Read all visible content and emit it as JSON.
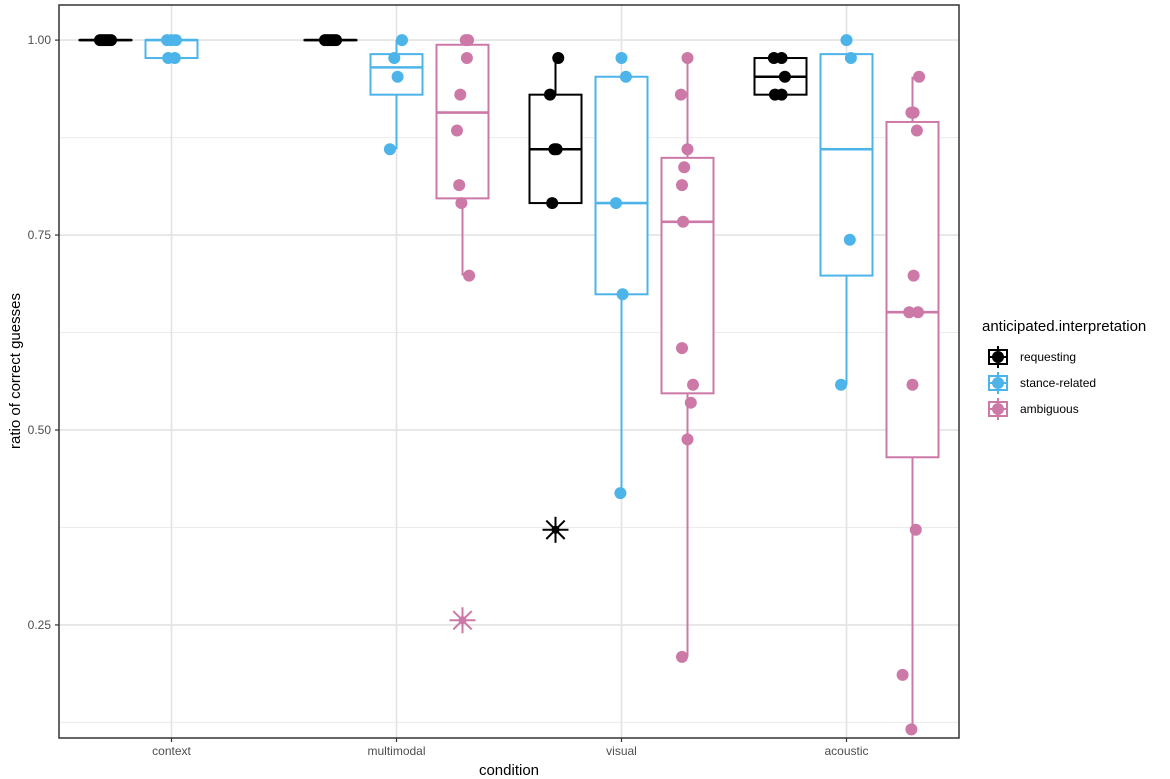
{
  "chart_data": {
    "type": "boxplot",
    "xlabel": "condition",
    "ylabel": "ratio of correct guesses",
    "ylim": [
      0.105,
      1.045
    ],
    "yticks": [
      0.25,
      0.5,
      0.75,
      1.0
    ],
    "ytick_labels": [
      "0.25",
      "0.50",
      "0.75",
      "1.00"
    ],
    "grid": true,
    "categories": [
      "context",
      "multimodal",
      "visual",
      "acoustic"
    ],
    "legend": {
      "title": "anticipated.interpretation",
      "placement": "right",
      "entries": [
        "requesting",
        "stance-related",
        "ambiguous"
      ]
    },
    "series": [
      {
        "name": "requesting",
        "color": "#000000",
        "boxes": [
          {
            "category": "context",
            "q1": 1.0,
            "median": 1.0,
            "q3": 1.0,
            "whisker_low": 1.0,
            "whisker_high": 1.0,
            "outliers": [],
            "points": [
              [
                -0.1,
                1.0
              ],
              [
                -0.05,
                1.0
              ],
              [
                0.0,
                1.0
              ],
              [
                0.05,
                1.0
              ],
              [
                0.1,
                1.0
              ]
            ]
          },
          {
            "category": "multimodal",
            "q1": 1.0,
            "median": 1.0,
            "q3": 1.0,
            "whisker_low": 1.0,
            "whisker_high": 1.0,
            "outliers": [],
            "points": [
              [
                -0.1,
                1.0
              ],
              [
                -0.05,
                1.0
              ],
              [
                0.0,
                1.0
              ],
              [
                0.05,
                1.0
              ],
              [
                0.1,
                1.0
              ]
            ]
          },
          {
            "category": "visual",
            "q1": 0.791,
            "median": 0.86,
            "q3": 0.93,
            "whisker_low": 0.791,
            "whisker_high": 0.977,
            "outliers": [
              0.372
            ],
            "points": [
              [
                -0.1,
                0.93
              ],
              [
                0.05,
                0.977
              ],
              [
                -0.02,
                0.86
              ],
              [
                0.02,
                0.86
              ],
              [
                -0.06,
                0.791
              ]
            ]
          },
          {
            "category": "acoustic",
            "q1": 0.93,
            "median": 0.953,
            "q3": 0.977,
            "whisker_low": 0.93,
            "whisker_high": 0.977,
            "outliers": [],
            "points": [
              [
                -0.12,
                0.977
              ],
              [
                0.02,
                0.977
              ],
              [
                0.08,
                0.953
              ],
              [
                -0.1,
                0.93
              ],
              [
                0.02,
                0.93
              ]
            ]
          }
        ]
      },
      {
        "name": "stance-related",
        "color": "#4DB4E9",
        "boxes": [
          {
            "category": "context",
            "q1": 0.977,
            "median": 1.0,
            "q3": 1.0,
            "whisker_low": 0.977,
            "whisker_high": 1.0,
            "outliers": [],
            "points": [
              [
                -0.08,
                1.0
              ],
              [
                0.08,
                1.0
              ],
              [
                -0.06,
                0.977
              ],
              [
                0.06,
                0.977
              ],
              [
                0.0,
                1.0
              ]
            ]
          },
          {
            "category": "multimodal",
            "q1": 0.93,
            "median": 0.965,
            "q3": 0.982,
            "whisker_low": 0.86,
            "whisker_high": 1.0,
            "outliers": [],
            "points": [
              [
                0.1,
                1.0
              ],
              [
                -0.04,
                0.977
              ],
              [
                0.02,
                0.953
              ],
              [
                -0.12,
                0.86
              ]
            ]
          },
          {
            "category": "visual",
            "q1": 0.674,
            "median": 0.791,
            "q3": 0.953,
            "whisker_low": 0.419,
            "whisker_high": 0.953,
            "outliers": [],
            "points": [
              [
                0.0,
                0.977
              ],
              [
                0.08,
                0.953
              ],
              [
                -0.1,
                0.791
              ],
              [
                0.02,
                0.674
              ],
              [
                -0.02,
                0.419
              ]
            ]
          },
          {
            "category": "acoustic",
            "q1": 0.698,
            "median": 0.86,
            "q3": 0.982,
            "whisker_low": 0.558,
            "whisker_high": 0.982,
            "outliers": [],
            "points": [
              [
                0.0,
                1.0
              ],
              [
                0.08,
                0.977
              ],
              [
                0.06,
                0.744
              ],
              [
                -0.1,
                0.558
              ]
            ]
          }
        ]
      },
      {
        "name": "ambiguous",
        "color": "#CC79A7",
        "boxes": [
          {
            "category": "multimodal",
            "q1": 0.797,
            "median": 0.907,
            "q3": 0.994,
            "whisker_low": 0.698,
            "whisker_high": 1.0,
            "outliers": [
              0.256
            ],
            "points": [
              [
                0.06,
                1.0
              ],
              [
                0.1,
                1.0
              ],
              [
                0.08,
                0.977
              ],
              [
                -0.04,
                0.93
              ],
              [
                -0.1,
                0.884
              ],
              [
                -0.06,
                0.814
              ],
              [
                -0.02,
                0.791
              ],
              [
                0.12,
                0.698
              ]
            ]
          },
          {
            "category": "visual",
            "q1": 0.547,
            "median": 0.767,
            "q3": 0.849,
            "whisker_low": 0.209,
            "whisker_high": 0.977,
            "outliers": [],
            "points": [
              [
                0.0,
                0.977
              ],
              [
                -0.12,
                0.93
              ],
              [
                0.0,
                0.86
              ],
              [
                -0.06,
                0.837
              ],
              [
                -0.1,
                0.814
              ],
              [
                -0.08,
                0.767
              ],
              [
                -0.1,
                0.605
              ],
              [
                0.1,
                0.558
              ],
              [
                0.06,
                0.535
              ],
              [
                0.0,
                0.488
              ],
              [
                -0.1,
                0.209
              ]
            ]
          },
          {
            "category": "acoustic",
            "q1": 0.465,
            "median": 0.651,
            "q3": 0.895,
            "whisker_low": 0.116,
            "whisker_high": 0.953,
            "outliers": [],
            "points": [
              [
                0.12,
                0.953
              ],
              [
                -0.02,
                0.907
              ],
              [
                0.02,
                0.907
              ],
              [
                0.08,
                0.884
              ],
              [
                0.02,
                0.698
              ],
              [
                -0.06,
                0.651
              ],
              [
                0.1,
                0.651
              ],
              [
                0.0,
                0.558
              ],
              [
                0.06,
                0.372
              ],
              [
                -0.18,
                0.186
              ],
              [
                -0.02,
                0.116
              ]
            ]
          }
        ]
      }
    ]
  }
}
